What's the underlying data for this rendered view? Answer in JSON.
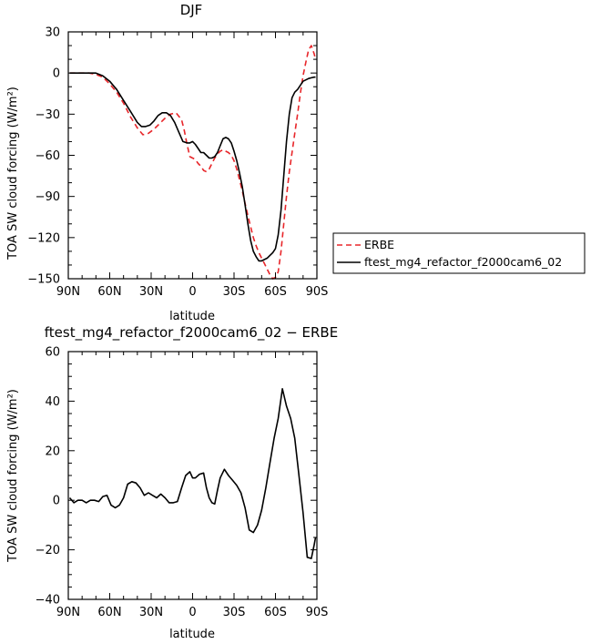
{
  "chart_data": [
    {
      "type": "line",
      "title": "DJF",
      "xlabel": "latitude",
      "ylabel": "TOA SW cloud forcing (W/m²)",
      "xlim": [
        90,
        -90
      ],
      "ylim": [
        -150,
        30
      ],
      "x_ticks": [
        90,
        60,
        30,
        0,
        -30,
        -60,
        -90
      ],
      "x_tick_labels": [
        "90N",
        "60N",
        "30N",
        "0",
        "30S",
        "60S",
        "90S"
      ],
      "y_ticks": [
        30,
        0,
        -30,
        -60,
        -90,
        -120,
        -150
      ],
      "y_tick_labels": [
        "30",
        "0",
        "−30",
        "−60",
        "−90",
        "−120",
        "−150"
      ],
      "legend_position": "right",
      "series": [
        {
          "name": "ERBE",
          "color": "#e8262a",
          "dash": "dashed",
          "x": [
            89,
            85,
            80,
            75,
            70,
            65,
            60,
            55,
            50,
            45,
            40,
            36,
            32,
            28,
            24,
            20,
            16,
            12,
            8,
            6,
            4,
            2,
            0,
            -2,
            -4,
            -6,
            -8,
            -10,
            -12,
            -14,
            -16,
            -18,
            -20,
            -22,
            -24,
            -26,
            -28,
            -30,
            -32,
            -34,
            -36,
            -38,
            -40,
            -42,
            -44,
            -46,
            -48,
            -50,
            -52,
            -54,
            -56,
            -58,
            -60,
            -62,
            -64,
            -66,
            -68,
            -70,
            -72,
            -74,
            -76,
            -78,
            -80,
            -82,
            -84,
            -86,
            -88,
            -89
          ],
          "y": [
            0,
            0,
            0,
            0,
            -1,
            -3,
            -8,
            -14,
            -22,
            -32,
            -40,
            -45,
            -44,
            -41,
            -37,
            -33,
            -30,
            -29,
            -34,
            -42,
            -52,
            -61,
            -62,
            -63,
            -66,
            -68,
            -71,
            -72,
            -70,
            -66,
            -62,
            -59,
            -57,
            -56,
            -57,
            -58,
            -60,
            -64,
            -70,
            -78,
            -86,
            -95,
            -104,
            -112,
            -120,
            -126,
            -131,
            -135,
            -139,
            -143,
            -147,
            -150,
            -149,
            -145,
            -130,
            -110,
            -90,
            -72,
            -58,
            -44,
            -30,
            -15,
            -2,
            8,
            17,
            20,
            14,
            10
          ]
        },
        {
          "name": "ftest_mg4_refactor_f2000cam6_02",
          "color": "#000000",
          "dash": "solid",
          "x": [
            89,
            85,
            80,
            75,
            70,
            65,
            60,
            55,
            50,
            45,
            40,
            37,
            34,
            31,
            28,
            25,
            22,
            19,
            16,
            13,
            10,
            7,
            4,
            2,
            0,
            -2,
            -4,
            -6,
            -8,
            -10,
            -12,
            -14,
            -16,
            -18,
            -20,
            -22,
            -24,
            -26,
            -28,
            -30,
            -32,
            -34,
            -36,
            -38,
            -40,
            -42,
            -44,
            -46,
            -48,
            -50,
            -52,
            -54,
            -56,
            -58,
            -60,
            -62,
            -64,
            -66,
            -68,
            -70,
            -72,
            -74,
            -76,
            -78,
            -80,
            -82,
            -84,
            -86,
            -88,
            -89
          ],
          "y": [
            0,
            0,
            0,
            0,
            0,
            -2,
            -6,
            -12,
            -20,
            -28,
            -36,
            -39,
            -39,
            -38,
            -35,
            -31,
            -29,
            -29,
            -31,
            -36,
            -43,
            -50,
            -51,
            -51,
            -50,
            -52,
            -55,
            -58,
            -58,
            -60,
            -62,
            -62,
            -61,
            -58,
            -53,
            -48,
            -47,
            -48,
            -51,
            -57,
            -64,
            -73,
            -83,
            -96,
            -110,
            -122,
            -130,
            -134,
            -137,
            -137,
            -136,
            -135,
            -133,
            -131,
            -128,
            -118,
            -100,
            -75,
            -50,
            -30,
            -18,
            -14,
            -12,
            -9,
            -6,
            -5,
            -4,
            -3.5,
            -3,
            -3
          ]
        }
      ]
    },
    {
      "type": "line",
      "title": "ftest_mg4_refactor_f2000cam6_02 − ERBE",
      "xlabel": "latitude",
      "ylabel": "TOA SW cloud forcing (W/m²)",
      "xlim": [
        90,
        -90
      ],
      "ylim": [
        -40,
        60
      ],
      "x_ticks": [
        90,
        60,
        30,
        0,
        -30,
        -60,
        -90
      ],
      "x_tick_labels": [
        "90N",
        "60N",
        "30N",
        "0",
        "30S",
        "60S",
        "90S"
      ],
      "y_ticks": [
        60,
        40,
        20,
        0,
        -20,
        -40
      ],
      "y_tick_labels": [
        "60",
        "40",
        "20",
        "0",
        "−20",
        "−40"
      ],
      "series": [
        {
          "color": "#000000",
          "dash": "solid",
          "x": [
            89,
            86,
            83,
            80,
            77,
            74,
            71,
            68,
            65,
            62,
            59,
            56,
            53,
            50,
            47,
            44,
            41,
            38,
            35,
            32,
            29,
            26,
            23,
            20,
            17,
            14,
            11,
            8,
            5,
            2,
            0,
            -2,
            -5,
            -8,
            -10,
            -12,
            -14,
            -16,
            -18,
            -20,
            -23,
            -26,
            -29,
            -32,
            -35,
            -38,
            -41,
            -44,
            -47,
            -50,
            -53,
            -56,
            -59,
            -62,
            -65,
            -68,
            -71,
            -74,
            -77,
            -80,
            -83,
            -86,
            -88,
            -89
          ],
          "y": [
            1,
            -1,
            0,
            0,
            -1,
            0,
            0,
            -0.5,
            1.5,
            2,
            -2,
            -3,
            -2,
            1,
            6.5,
            7.5,
            7,
            5,
            2,
            3,
            2,
            1,
            2.5,
            1,
            -1,
            -1,
            -0.5,
            5,
            10,
            11.5,
            9,
            9,
            10.5,
            11,
            5,
            1,
            -1,
            -1.5,
            4,
            9,
            12.5,
            10,
            8,
            6,
            3,
            -3,
            -12,
            -13,
            -10,
            -4,
            5,
            15,
            25,
            33,
            45,
            38,
            33,
            25,
            10,
            -5,
            -23,
            -23.5,
            -18,
            -15
          ]
        }
      ]
    }
  ]
}
